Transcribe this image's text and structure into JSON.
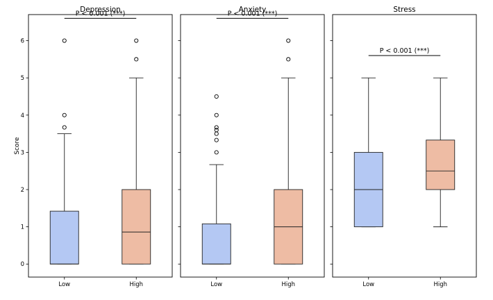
{
  "chart_data": {
    "type": "box",
    "ylabel": "Score",
    "ylim": [
      -0.35,
      6.7
    ],
    "yticks": [
      0,
      1,
      2,
      3,
      4,
      5,
      6
    ],
    "categories": [
      "Low",
      "High"
    ],
    "colors": {
      "Low": "#b4c8f3",
      "High": "#eebca4"
    },
    "panels": [
      {
        "title": "Depression",
        "annotation": "P < 0.001 (***)",
        "annotation_y": 6.6,
        "boxes": [
          {
            "category": "Low",
            "whisker_low": 0,
            "q1": 0,
            "median": 0,
            "q3": 1.42,
            "whisker_high": 3.5,
            "outliers": [
              3.67,
              4.0,
              6.0
            ]
          },
          {
            "category": "High",
            "whisker_low": 0,
            "q1": 0,
            "median": 0.86,
            "q3": 2.0,
            "whisker_high": 5.0,
            "outliers": [
              5.5,
              6.0
            ]
          }
        ]
      },
      {
        "title": "Anxiety",
        "annotation": "P < 0.001 (***)",
        "annotation_y": 6.6,
        "boxes": [
          {
            "category": "Low",
            "whisker_low": 0,
            "q1": 0,
            "median": 0,
            "q3": 1.08,
            "whisker_high": 2.67,
            "outliers": [
              3.0,
              3.33,
              3.5,
              3.6,
              3.67,
              4.0,
              4.5
            ]
          },
          {
            "category": "High",
            "whisker_low": 0,
            "q1": 0,
            "median": 1.0,
            "q3": 2.0,
            "whisker_high": 5.0,
            "outliers": [
              5.5,
              6.0
            ]
          }
        ]
      },
      {
        "title": "Stress",
        "annotation": "P < 0.001 (***)",
        "annotation_y": 5.6,
        "boxes": [
          {
            "category": "Low",
            "whisker_low": 1.0,
            "q1": 1.0,
            "median": 2.0,
            "q3": 3.0,
            "whisker_high": 5.0,
            "outliers": []
          },
          {
            "category": "High",
            "whisker_low": 1.0,
            "q1": 2.0,
            "median": 2.5,
            "q3": 3.33,
            "whisker_high": 5.0,
            "outliers": []
          }
        ]
      }
    ]
  }
}
